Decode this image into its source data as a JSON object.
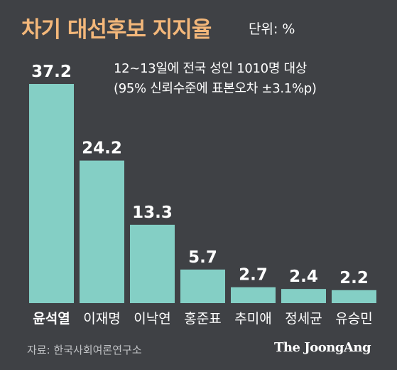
{
  "title": "차기 대선후보 지지율",
  "unit": "단위: %",
  "notes": [
    "12~13일에 전국 성인 1010명 대상",
    "(95% 신뢰수준에 표본오차 ±3.1%p)"
  ],
  "source": "자료: 한국사회여론연구소",
  "brand": "The JoongAng",
  "colors": {
    "bar": "#84cfc5",
    "background": "#3f4145",
    "title": "#f3b77a",
    "text": "#ffffff"
  },
  "chart_data": {
    "type": "bar",
    "categories": [
      "윤석열",
      "이재명",
      "이낙연",
      "홍준표",
      "추미애",
      "정세균",
      "유승민"
    ],
    "values": [
      37.2,
      24.2,
      13.3,
      5.7,
      2.7,
      2.4,
      2.2
    ],
    "value_labels": [
      "37.2",
      "24.2",
      "13.3",
      "5.7",
      "2.7",
      "2.4",
      "2.2"
    ],
    "title": "차기 대선후보 지지율",
    "xlabel": "",
    "ylabel": "",
    "ylim": [
      0,
      37.2
    ],
    "grid": false,
    "highlight_category": "윤석열"
  }
}
